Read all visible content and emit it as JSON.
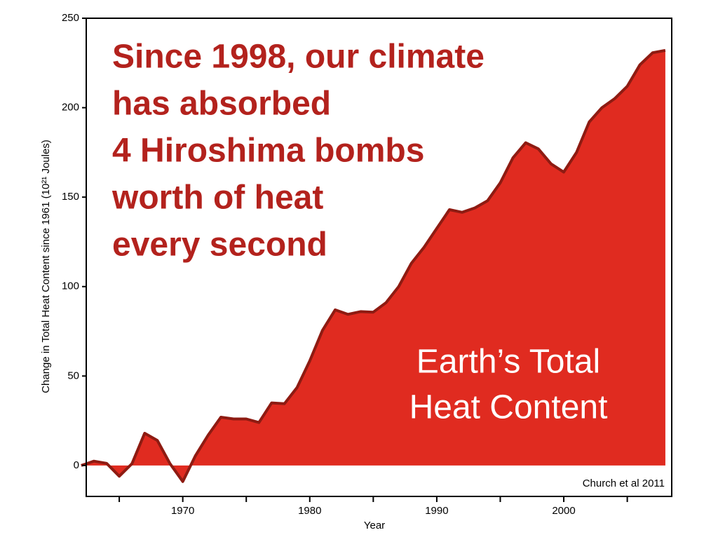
{
  "chart_data": {
    "type": "area",
    "headline": [
      "Since 1998, our climate",
      "has absorbed",
      "4 Hiroshima bombs",
      "worth of heat",
      "every second"
    ],
    "area_label": [
      "Earth’s Total",
      "Heat Content"
    ],
    "source": "Church et al 2011",
    "xlabel": "Year",
    "ylabel": "Change in Total Heat Content since 1961 (10²¹ Joules)",
    "x": [
      1962,
      1963,
      1964,
      1965,
      1966,
      1967,
      1968,
      1969,
      1970,
      1971,
      1972,
      1973,
      1974,
      1975,
      1976,
      1977,
      1978,
      1979,
      1980,
      1981,
      1982,
      1983,
      1984,
      1985,
      1986,
      1987,
      1988,
      1989,
      1990,
      1991,
      1992,
      1993,
      1994,
      1995,
      1996,
      1997,
      1998,
      1999,
      2000,
      2001,
      2002,
      2003,
      2004,
      2005,
      2006,
      2007,
      2008
    ],
    "values": [
      0,
      2.4,
      1.2,
      -6,
      1,
      18,
      14,
      1,
      -9,
      5.5,
      17,
      27,
      26,
      26,
      24,
      35,
      34.5,
      43.6,
      58.5,
      75.5,
      87,
      84.5,
      86,
      85.7,
      91,
      100,
      113,
      122,
      132.5,
      143,
      141.5,
      144,
      148,
      158,
      172,
      180.4,
      177,
      168.6,
      164,
      175,
      192,
      200,
      205,
      212,
      224,
      230.7,
      232
    ],
    "color": "#e02b20",
    "line_color": "#8e1b12",
    "headline_color": "#b3221d",
    "xlim": [
      1962.4,
      2008.5
    ],
    "xticks": [
      1970,
      1980,
      1990,
      2000
    ],
    "xminorticks": [
      1965,
      1975,
      1985,
      1995,
      2005
    ],
    "ylim": [
      -17.3,
      250
    ],
    "yticks": [
      0,
      50,
      100,
      150,
      200,
      250
    ]
  }
}
